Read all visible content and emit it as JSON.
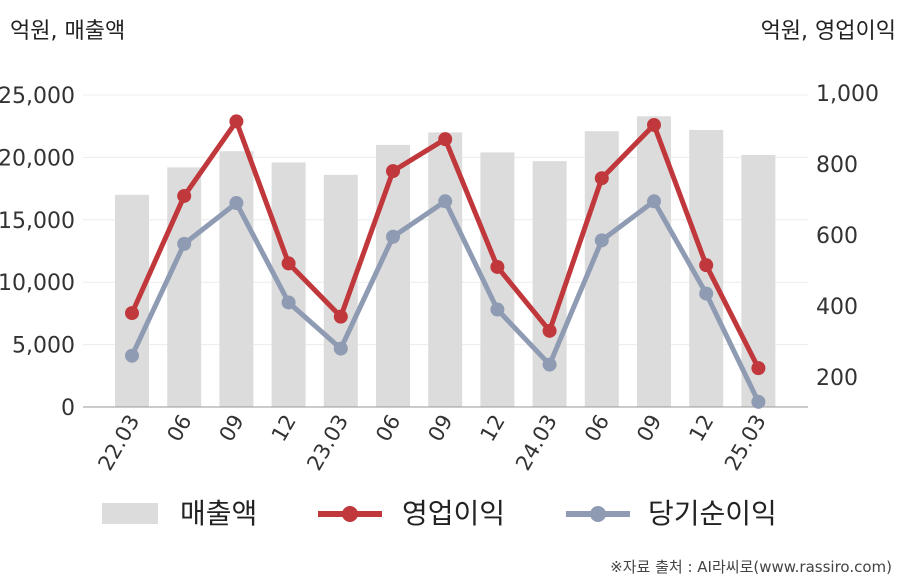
{
  "chart_data": {
    "type": "bar+line",
    "left_axis_title": "억원, 매출액",
    "right_axis_title": "억원, 영업이익",
    "categories": [
      "22.03",
      "06",
      "09",
      "12",
      "23.03",
      "06",
      "09",
      "12",
      "24.03",
      "06",
      "09",
      "12",
      "25.03"
    ],
    "left_ticks": [
      "0",
      "5,000",
      "10,000",
      "15,000",
      "20,000",
      "25,000"
    ],
    "right_ticks": [
      "200",
      "400",
      "600",
      "800",
      "1,000"
    ],
    "left_ylim": [
      0,
      25000
    ],
    "right_ylim": [
      110,
      1000
    ],
    "series": [
      {
        "name": "매출액",
        "kind": "bar",
        "axis": "left",
        "color": "#dcdcdc",
        "values": [
          17000,
          19200,
          20500,
          19600,
          18600,
          21000,
          22000,
          20400,
          19700,
          22100,
          23300,
          22200,
          20200
        ]
      },
      {
        "name": "영업이익",
        "kind": "line",
        "axis": "right",
        "color": "#c0383c",
        "values": [
          380,
          710,
          920,
          520,
          370,
          780,
          870,
          510,
          330,
          760,
          910,
          515,
          225
        ]
      },
      {
        "name": "당기순이익",
        "kind": "line",
        "axis": "right",
        "color": "#8f9bb3",
        "values": [
          260,
          575,
          690,
          410,
          280,
          595,
          695,
          390,
          235,
          585,
          695,
          435,
          130
        ]
      }
    ],
    "grid": true,
    "legend_position": "bottom"
  },
  "source_note": "※자료 출처 : AI라씨로(www.rassiro.com)"
}
